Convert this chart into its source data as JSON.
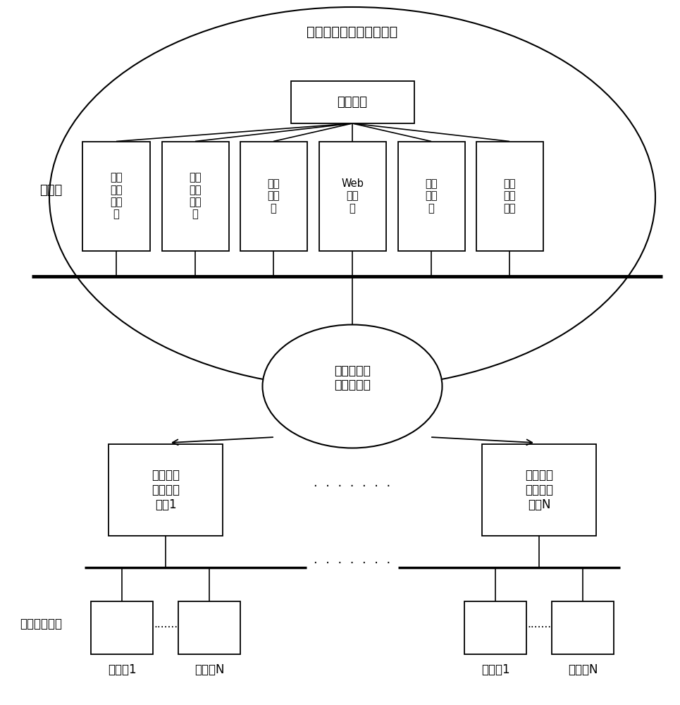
{
  "title": "智能化低压管理主站系统",
  "bg_color": "#ffffff",
  "text_color": "#000000",
  "management_terminal_label": "管理终端",
  "servers": [
    "数据\n存储\n服务\n器",
    "数据\n处理\n服务\n器",
    "前置\n服务\n器",
    "Web\n服务\n器",
    "网关\n服务\n器",
    "数据\n库服\n务器"
  ],
  "training_room_label": "实训室",
  "network_label": "光纤通讯网\n或无线公网",
  "terminal1_label": "模拟智能\n配电台区\n终端1",
  "terminalN_label": "模拟智能\n配电台区\n终端N",
  "low_voltage_label": "低压电力用户",
  "meter1_label": "电能表1",
  "meterN_label": "电能表N",
  "dots_mid": "·······",
  "dots_meter": "·······"
}
